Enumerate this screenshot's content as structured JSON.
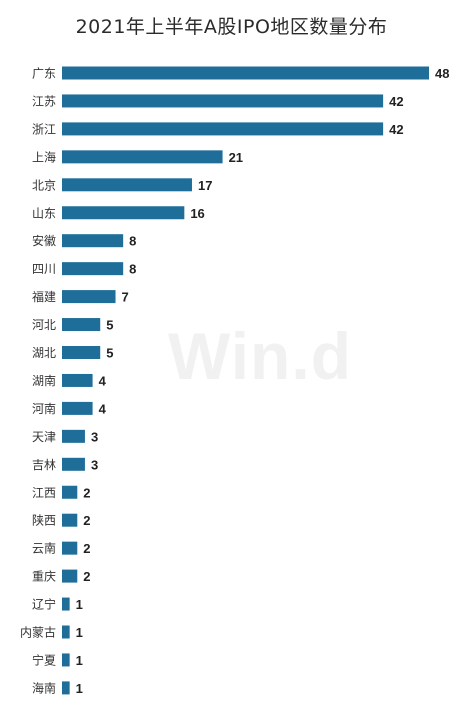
{
  "watermark": "Win.d",
  "chart_data": {
    "type": "bar",
    "orientation": "horizontal",
    "title": "2021年上半年A股IPO地区数量分布",
    "xlabel": "",
    "ylabel": "",
    "xlim": [
      0,
      48
    ],
    "grid": false,
    "legend": "none",
    "bar_color": "#1f6e99",
    "categories": [
      "广东",
      "江苏",
      "浙江",
      "上海",
      "北京",
      "山东",
      "安徽",
      "四川",
      "福建",
      "河北",
      "湖北",
      "湖南",
      "河南",
      "天津",
      "吉林",
      "江西",
      "陕西",
      "云南",
      "重庆",
      "辽宁",
      "内蒙古",
      "宁夏",
      "海南"
    ],
    "values": [
      48,
      42,
      42,
      21,
      17,
      16,
      8,
      8,
      7,
      5,
      5,
      4,
      4,
      3,
      3,
      2,
      2,
      2,
      2,
      1,
      1,
      1,
      1
    ]
  }
}
